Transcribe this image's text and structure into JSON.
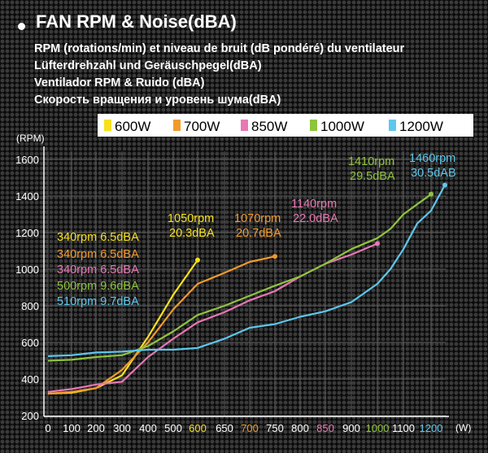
{
  "header": {
    "title": "FAN RPM &  Noise(dBA)",
    "subtitles": [
      "RPM (rotations/min) et niveau de bruit (dB pondéré) du ventilateur",
      "Lüfterdrehzahl und Geräuschpegel(dBA)",
      "Ventilador RPM & Ruido (dBA)",
      "Скорость вращения и уровень шума(dBA)"
    ]
  },
  "chart_data": {
    "type": "line",
    "y_unit_label": "(RPM)",
    "x_unit_label": "(W)",
    "ylim": [
      200,
      1600
    ],
    "y_ticks": [
      200,
      400,
      600,
      800,
      1000,
      1200,
      1400,
      1600
    ],
    "x_ticks": [
      {
        "value": 0,
        "label": "0",
        "color": "#ffffff"
      },
      {
        "value": 100,
        "label": "100",
        "color": "#ffffff"
      },
      {
        "value": 200,
        "label": "200",
        "color": "#ffffff"
      },
      {
        "value": 300,
        "label": "300",
        "color": "#ffffff"
      },
      {
        "value": 400,
        "label": "400",
        "color": "#ffffff"
      },
      {
        "value": 500,
        "label": "500",
        "color": "#ffffff"
      },
      {
        "value": 600,
        "label": "600",
        "color": "#f7e11c"
      },
      {
        "value": 650,
        "label": "650",
        "color": "#ffffff"
      },
      {
        "value": 700,
        "label": "700",
        "color": "#f39a2c"
      },
      {
        "value": 750,
        "label": "750",
        "color": "#ffffff"
      },
      {
        "value": 800,
        "label": "800",
        "color": "#ffffff"
      },
      {
        "value": 850,
        "label": "850",
        "color": "#e778b4"
      },
      {
        "value": 900,
        "label": "900",
        "color": "#ffffff"
      },
      {
        "value": 1000,
        "label": "1000",
        "color": "#8fc43d"
      },
      {
        "value": 1100,
        "label": "1100",
        "color": "#ffffff"
      },
      {
        "value": 1200,
        "label": "1200",
        "color": "#5cc8ee"
      }
    ],
    "grid": true,
    "legend_position": "top",
    "series": [
      {
        "name": "600W",
        "color": "#f7e11c",
        "points": [
          [
            0,
            320
          ],
          [
            100,
            325
          ],
          [
            200,
            350
          ],
          [
            300,
            420
          ],
          [
            400,
            630
          ],
          [
            500,
            860
          ],
          [
            600,
            1050
          ]
        ]
      },
      {
        "name": "700W",
        "color": "#f39a2c",
        "points": [
          [
            0,
            320
          ],
          [
            100,
            330
          ],
          [
            200,
            350
          ],
          [
            300,
            450
          ],
          [
            400,
            600
          ],
          [
            500,
            780
          ],
          [
            600,
            920
          ],
          [
            650,
            980
          ],
          [
            700,
            1040
          ],
          [
            750,
            1070
          ]
        ]
      },
      {
        "name": "850W",
        "color": "#e778b4",
        "points": [
          [
            0,
            330
          ],
          [
            100,
            345
          ],
          [
            200,
            370
          ],
          [
            300,
            385
          ],
          [
            400,
            520
          ],
          [
            500,
            620
          ],
          [
            600,
            710
          ],
          [
            650,
            765
          ],
          [
            700,
            830
          ],
          [
            750,
            880
          ],
          [
            800,
            960
          ],
          [
            850,
            1030
          ],
          [
            900,
            1080
          ],
          [
            1000,
            1140
          ]
        ]
      },
      {
        "name": "1000W",
        "color": "#8fc43d",
        "points": [
          [
            0,
            500
          ],
          [
            100,
            505
          ],
          [
            200,
            520
          ],
          [
            300,
            530
          ],
          [
            400,
            580
          ],
          [
            500,
            660
          ],
          [
            600,
            750
          ],
          [
            650,
            800
          ],
          [
            700,
            855
          ],
          [
            750,
            910
          ],
          [
            800,
            960
          ],
          [
            850,
            1030
          ],
          [
            900,
            1110
          ],
          [
            1000,
            1170
          ],
          [
            1050,
            1220
          ],
          [
            1100,
            1300
          ],
          [
            1200,
            1410
          ]
        ]
      },
      {
        "name": "1200W",
        "color": "#5cc8ee",
        "points": [
          [
            0,
            525
          ],
          [
            100,
            530
          ],
          [
            200,
            545
          ],
          [
            300,
            550
          ],
          [
            400,
            560
          ],
          [
            500,
            560
          ],
          [
            600,
            570
          ],
          [
            650,
            620
          ],
          [
            700,
            680
          ],
          [
            750,
            700
          ],
          [
            800,
            740
          ],
          [
            850,
            770
          ],
          [
            900,
            820
          ],
          [
            1000,
            920
          ],
          [
            1050,
            1000
          ],
          [
            1100,
            1110
          ],
          [
            1150,
            1250
          ],
          [
            1200,
            1320
          ],
          [
            1250,
            1460
          ]
        ]
      }
    ],
    "annotations": {
      "low_load": [
        {
          "text": "340rpm 6.5dBA",
          "color": "#f7e11c"
        },
        {
          "text": "340rpm 6.5dBA",
          "color": "#f39a2c"
        },
        {
          "text": "340rpm 6.5dBA",
          "color": "#e778b4"
        },
        {
          "text": "500rpm 9.6dBA",
          "color": "#8fc43d"
        },
        {
          "text": "510rpm 9.7dBA",
          "color": "#5cc8ee"
        }
      ],
      "full_load": [
        {
          "line1": "1050rpm",
          "line2": "20.3dBA",
          "color": "#f7e11c"
        },
        {
          "line1": "1070rpm",
          "line2": "20.7dBA",
          "color": "#f39a2c"
        },
        {
          "line1": "1140rpm",
          "line2": "22.0dBA",
          "color": "#e778b4"
        },
        {
          "line1": "1410rpm",
          "line2": "29.5dBA",
          "color": "#8fc43d"
        },
        {
          "line1": "1460rpm",
          "line2": "30.5dAB",
          "color": "#5cc8ee"
        }
      ]
    }
  }
}
